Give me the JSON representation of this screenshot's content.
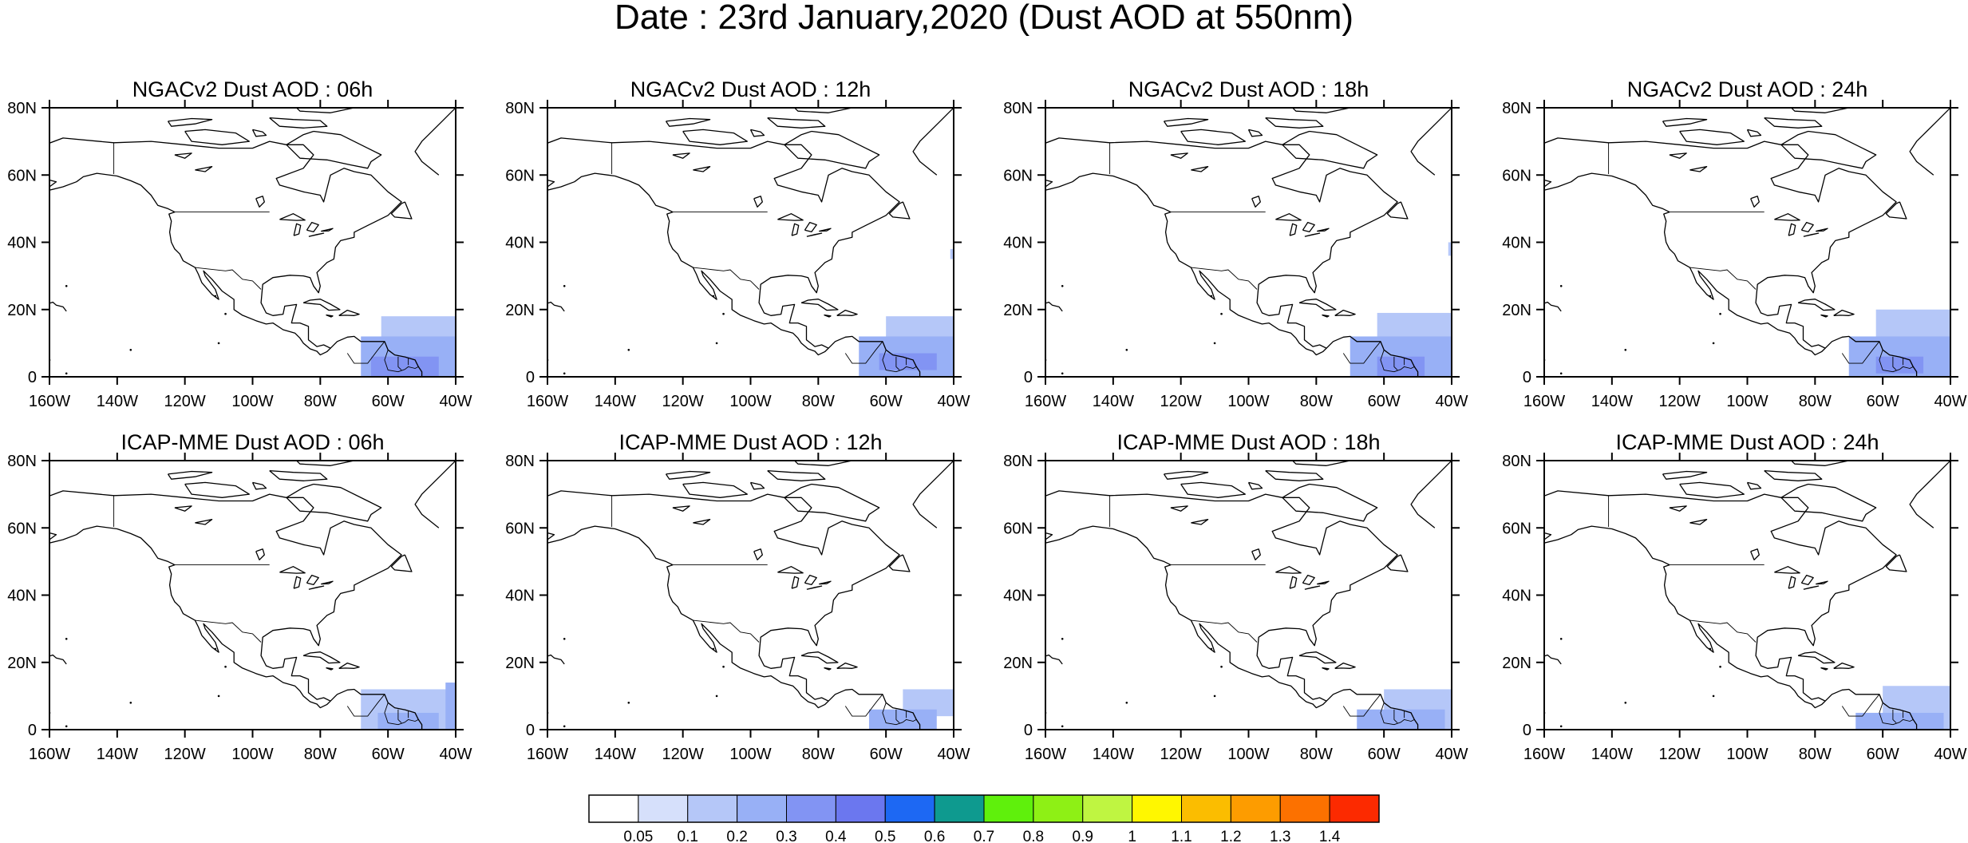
{
  "title": "Date : 23rd January,2020 (Dust AOD at 550nm)",
  "lon_ticks": [
    "160W",
    "140W",
    "120W",
    "100W",
    "80W",
    "60W",
    "40W"
  ],
  "lat_ticks": [
    "0",
    "20N",
    "40N",
    "60N",
    "80N"
  ],
  "map_extent": {
    "lon": [
      -160,
      -40
    ],
    "lat": [
      0,
      80
    ]
  },
  "panels": [
    {
      "title": "NGACv2 Dust AOD : 06h",
      "model": "NGACv2",
      "lead": "06h"
    },
    {
      "title": "NGACv2 Dust AOD : 12h",
      "model": "NGACv2",
      "lead": "12h"
    },
    {
      "title": "NGACv2 Dust AOD : 18h",
      "model": "NGACv2",
      "lead": "18h"
    },
    {
      "title": "NGACv2 Dust AOD : 24h",
      "model": "NGACv2",
      "lead": "24h"
    },
    {
      "title": "ICAP-MME Dust AOD : 06h",
      "model": "ICAP-MME",
      "lead": "06h"
    },
    {
      "title": "ICAP-MME Dust AOD : 12h",
      "model": "ICAP-MME",
      "lead": "12h"
    },
    {
      "title": "ICAP-MME Dust AOD : 18h",
      "model": "ICAP-MME",
      "lead": "18h"
    },
    {
      "title": "ICAP-MME Dust AOD : 24h",
      "model": "ICAP-MME",
      "lead": "24h"
    }
  ],
  "colorbar": {
    "labels": [
      "0.05",
      "0.1",
      "0.2",
      "0.3",
      "0.4",
      "0.5",
      "0.6",
      "0.7",
      "0.8",
      "0.9",
      "1",
      "1.1",
      "1.2",
      "1.3",
      "1.4"
    ],
    "colors": [
      "#ffffff",
      "#d6e0fb",
      "#b5c7f8",
      "#98b0f6",
      "#8294f3",
      "#6b77ef",
      "#1d68f3",
      "#0e9a8f",
      "#5ff00c",
      "#8ef015",
      "#bff541",
      "#fff700",
      "#fbbd00",
      "#fd9c00",
      "#fc7100",
      "#fc2a00"
    ]
  },
  "dust_fields": [
    [
      {
        "lon": [
          -65,
          -45
        ],
        "lat": [
          0,
          6
        ],
        "aod": 0.3
      },
      {
        "lon": [
          -68,
          -40
        ],
        "lat": [
          0,
          12
        ],
        "aod": 0.2
      },
      {
        "lon": [
          -62,
          -40
        ],
        "lat": [
          6,
          18
        ],
        "aod": 0.1
      }
    ],
    [
      {
        "lon": [
          -62,
          -45
        ],
        "lat": [
          2,
          7
        ],
        "aod": 0.3
      },
      {
        "lon": [
          -68,
          -40
        ],
        "lat": [
          0,
          12
        ],
        "aod": 0.2
      },
      {
        "lon": [
          -60,
          -40
        ],
        "lat": [
          8,
          18
        ],
        "aod": 0.1
      },
      {
        "lon": [
          -41,
          -40
        ],
        "lat": [
          35,
          38
        ],
        "aod": 0.1
      }
    ],
    [
      {
        "lon": [
          -62,
          -48
        ],
        "lat": [
          0,
          6
        ],
        "aod": 0.3
      },
      {
        "lon": [
          -70,
          -40
        ],
        "lat": [
          0,
          12
        ],
        "aod": 0.2
      },
      {
        "lon": [
          -62,
          -40
        ],
        "lat": [
          8,
          19
        ],
        "aod": 0.1
      },
      {
        "lon": [
          -41,
          -40
        ],
        "lat": [
          36,
          40
        ],
        "aod": 0.1
      }
    ],
    [
      {
        "lon": [
          -62,
          -48
        ],
        "lat": [
          1,
          6
        ],
        "aod": 0.3
      },
      {
        "lon": [
          -70,
          -40
        ],
        "lat": [
          0,
          12
        ],
        "aod": 0.2
      },
      {
        "lon": [
          -62,
          -40
        ],
        "lat": [
          8,
          20
        ],
        "aod": 0.1
      }
    ],
    [
      {
        "lon": [
          -68,
          -40
        ],
        "lat": [
          0,
          12
        ],
        "aod": 0.1
      },
      {
        "lon": [
          -63,
          -45
        ],
        "lat": [
          0,
          5
        ],
        "aod": 0.2
      },
      {
        "lon": [
          -43,
          -40
        ],
        "lat": [
          0,
          14
        ],
        "aod": 0.2
      }
    ],
    [
      {
        "lon": [
          -65,
          -45
        ],
        "lat": [
          0,
          6
        ],
        "aod": 0.2
      },
      {
        "lon": [
          -55,
          -40
        ],
        "lat": [
          4,
          12
        ],
        "aod": 0.1
      }
    ],
    [
      {
        "lon": [
          -68,
          -42
        ],
        "lat": [
          0,
          6
        ],
        "aod": 0.2
      },
      {
        "lon": [
          -60,
          -40
        ],
        "lat": [
          0,
          12
        ],
        "aod": 0.1
      }
    ],
    [
      {
        "lon": [
          -68,
          -42
        ],
        "lat": [
          0,
          5
        ],
        "aod": 0.2
      },
      {
        "lon": [
          -60,
          -40
        ],
        "lat": [
          0,
          13
        ],
        "aod": 0.1
      }
    ]
  ]
}
